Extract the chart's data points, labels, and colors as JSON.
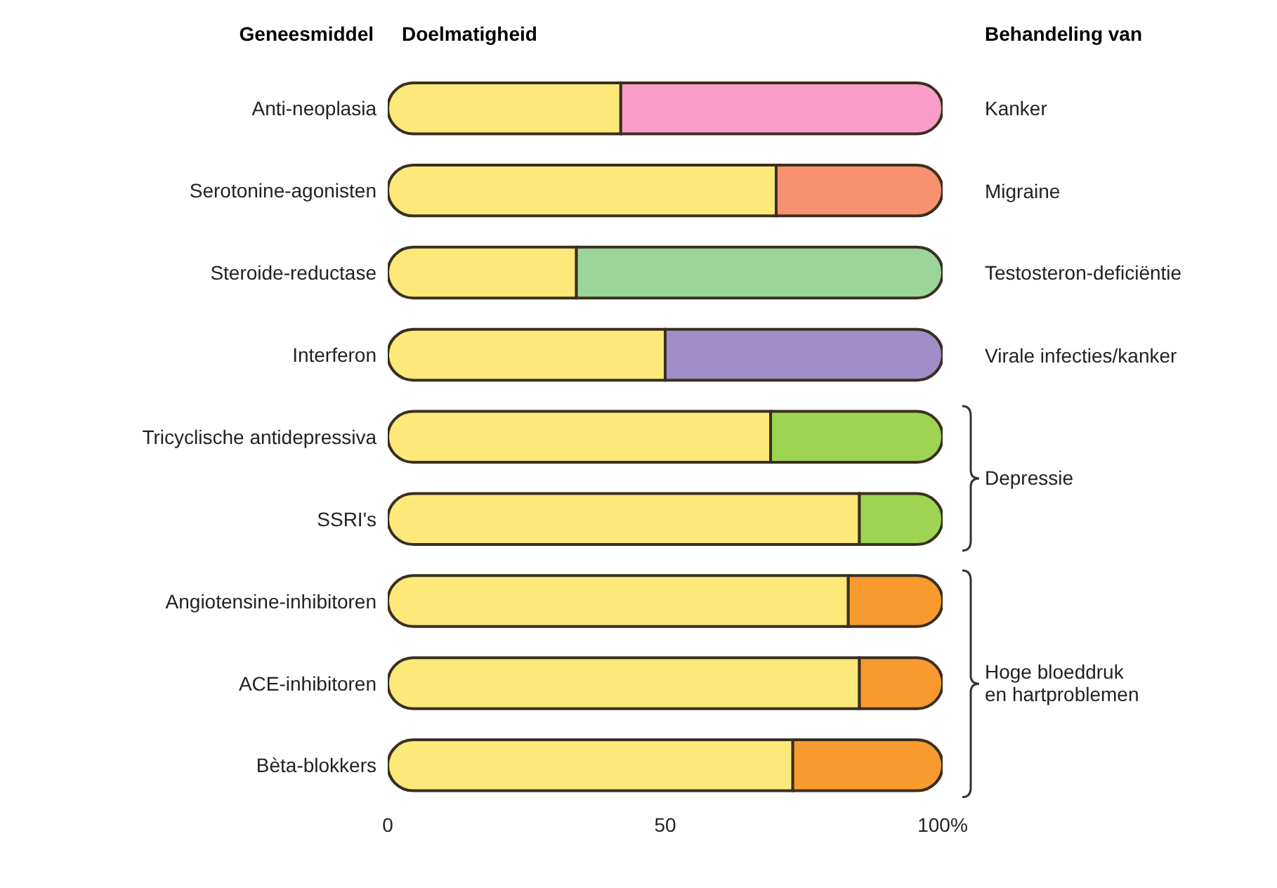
{
  "chart_data": {
    "type": "bar",
    "orientation": "horizontal",
    "stacked": true,
    "title": "Doelmatigheid",
    "ylabel": "Geneesmiddel",
    "categories": [
      "Anti-neoplasia",
      "Serotonine-agonisten",
      "Steroide-reductase",
      "Interferon",
      "Tricyclische antidepressiva",
      "SSRI's",
      "Angiotensine-inhibitoren",
      "ACE-inhibitoren",
      "Bèta-blokkers"
    ],
    "series": [
      {
        "color": "#fde97a",
        "values": [
          42,
          70,
          34,
          50,
          69,
          85,
          83,
          85,
          73
        ]
      },
      {
        "colors": [
          "#f99cc8",
          "#f99070",
          "#9bd59a",
          "#a08cc8",
          "#9ed452",
          "#9ed452",
          "#f99a2e",
          "#f99a2e",
          "#f99a2e"
        ],
        "values": [
          58,
          30,
          66,
          50,
          31,
          15,
          17,
          15,
          27
        ]
      }
    ],
    "xlim": [
      0,
      100
    ],
    "xticks": [
      0,
      50,
      {
        "value": 100,
        "label": "100%"
      }
    ],
    "annotations": [
      "Behandeling van",
      "Kanker",
      "Migraine",
      "Testosteron-deficiëntie",
      "Virale infecties/kanker",
      "Depressie",
      "Hoge bloeddruk en hartproblemen"
    ]
  }
}
